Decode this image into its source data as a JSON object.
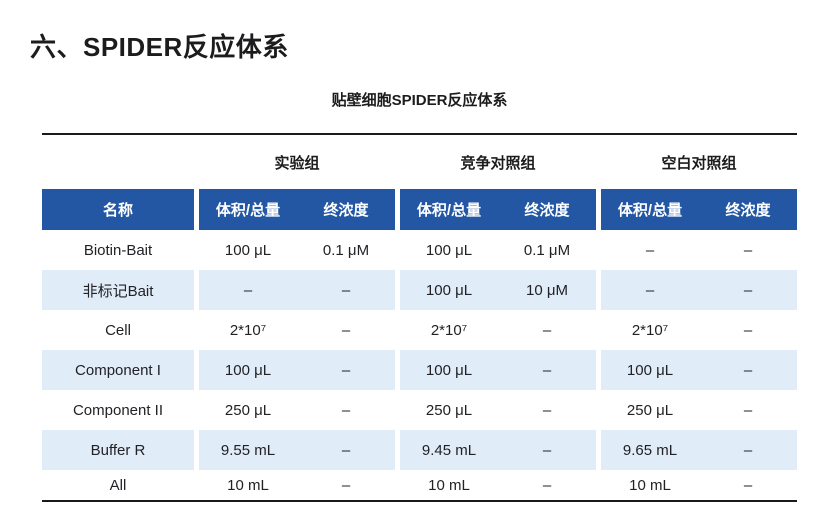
{
  "page": {
    "title": "六、SPIDER反应体系",
    "subtitle": "贴壁细胞SPIDER反应体系"
  },
  "table": {
    "name_header": "名称",
    "groups": [
      {
        "label": "实验组",
        "volume_header": "体积/总量",
        "conc_header": "终浓度"
      },
      {
        "label": "竞争对照组",
        "volume_header": "体积/总量",
        "conc_header": "终浓度"
      },
      {
        "label": "空白对照组",
        "volume_header": "体积/总量",
        "conc_header": "终浓度"
      }
    ],
    "rows": [
      {
        "name": "Biotin-Bait",
        "cells": [
          "100 μL",
          "0.1 μM",
          "100 μL",
          "0.1 μM",
          "–",
          "–"
        ]
      },
      {
        "name": "非标记Bait",
        "cells": [
          "–",
          "–",
          "100 μL",
          "10 μM",
          "–",
          "–"
        ]
      },
      {
        "name": "Cell",
        "cells": [
          "2*10⁷",
          "–",
          "2*10⁷",
          "–",
          "2*10⁷",
          "–"
        ]
      },
      {
        "name": "Component I",
        "cells": [
          "100 μL",
          "–",
          "100 μL",
          "–",
          "100 μL",
          "–"
        ]
      },
      {
        "name": "Component II",
        "cells": [
          "250 μL",
          "–",
          "250 μL",
          "–",
          "250 μL",
          "–"
        ]
      },
      {
        "name": "Buffer R",
        "cells": [
          "9.55 mL",
          "–",
          "9.45 mL",
          "–",
          "9.65 mL",
          "–"
        ]
      },
      {
        "name": "All",
        "cells": [
          "10 mL",
          "–",
          "10 mL",
          "–",
          "10 mL",
          "–"
        ]
      }
    ],
    "colors": {
      "header_bg": "#2357a4",
      "stripe_bg": "#e0ecf8",
      "rule": "#1a1a1a",
      "header_text": "#ffffff",
      "body_text": "#222226"
    }
  }
}
